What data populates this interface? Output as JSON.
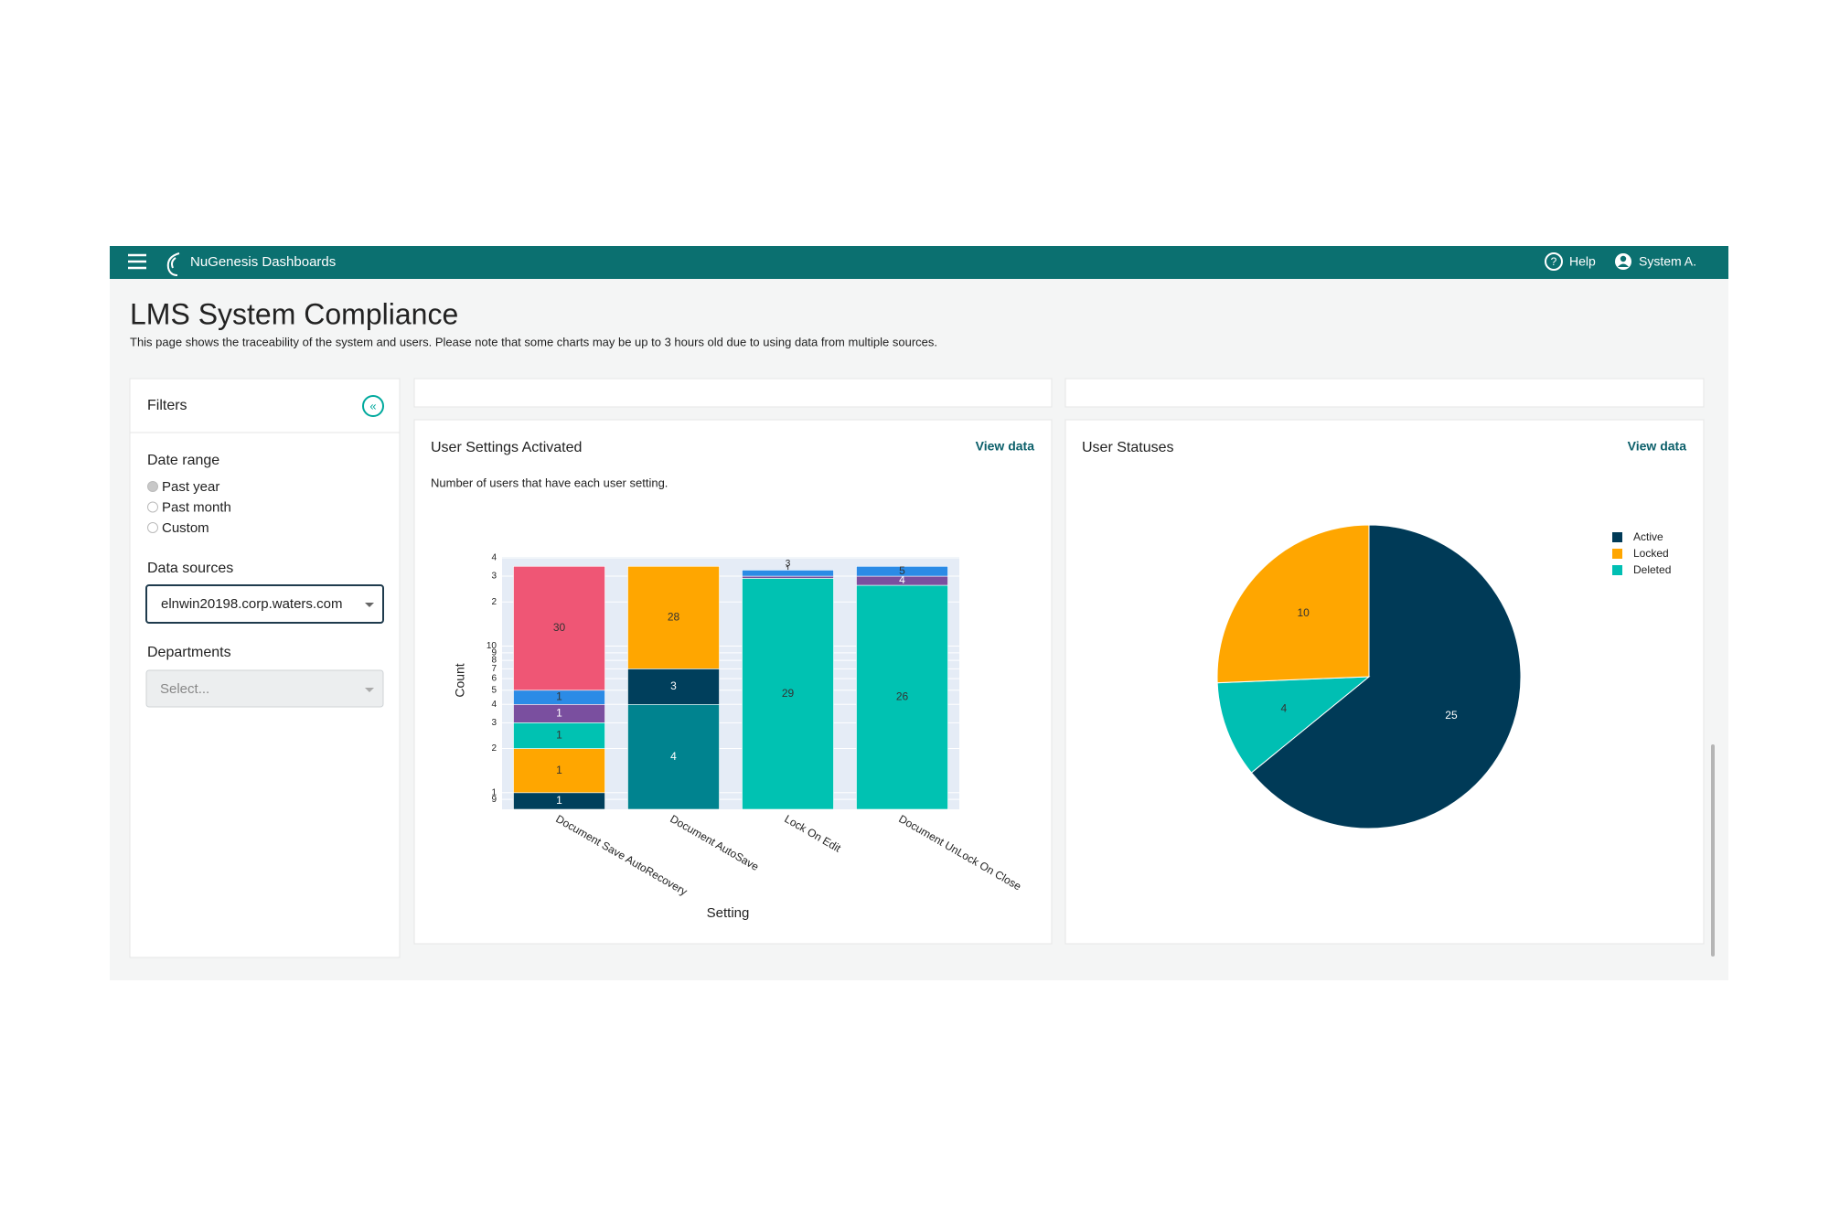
{
  "header": {
    "brand": "NuGenesis Dashboards",
    "help": "Help",
    "user": "System A."
  },
  "page": {
    "title": "LMS System Compliance",
    "subtitle": "This page shows the traceability of the system and users. Please note that some charts may be up to 3 hours old due to using data from multiple sources."
  },
  "filters": {
    "title": "Filters",
    "date_range": {
      "label": "Date range",
      "options": [
        "Past year",
        "Past month",
        "Custom"
      ],
      "selected": 0
    },
    "data_sources": {
      "label": "Data sources",
      "value": "elnwin20198.corp.waters.com"
    },
    "departments": {
      "label": "Departments",
      "placeholder": "Select..."
    }
  },
  "chart_data": [
    {
      "type": "bar",
      "stacked": true,
      "title": "User Settings Activated",
      "link": "View data",
      "subtitle": "Number of users that have each user setting.",
      "xlabel": "Setting",
      "ylabel": "Count",
      "log_y": true,
      "grid": true,
      "categories": [
        "Document Save AutoRecovery",
        "Document AutoSave",
        "Lock On Edit",
        "Document UnLock On Close"
      ],
      "series": [
        {
          "color": "#00838f",
          "values": [
            null,
            4,
            null,
            null
          ]
        },
        {
          "color": "#003f5c",
          "values": [
            1,
            3,
            null,
            null
          ]
        },
        {
          "color": "#ffa600",
          "values": [
            1,
            28,
            null,
            null
          ]
        },
        {
          "color": "#00c2b2",
          "values": [
            1,
            null,
            29,
            26
          ]
        },
        {
          "color": "#7a4f9f",
          "values": [
            1,
            null,
            1,
            4
          ]
        },
        {
          "color": "#2b8be6",
          "values": [
            1,
            null,
            3,
            5
          ]
        },
        {
          "color": "#ef5675",
          "values": [
            30,
            null,
            null,
            null
          ]
        }
      ],
      "ylim": [
        0.77,
        40.6
      ],
      "yticks": [
        {
          "value": 0.9,
          "label": "9"
        },
        1,
        2,
        3,
        4,
        5,
        6,
        7,
        8,
        9,
        10,
        {
          "value": 20,
          "label": "2"
        },
        {
          "value": 30,
          "label": "3"
        },
        {
          "value": 40,
          "label": "4"
        }
      ]
    },
    {
      "type": "pie",
      "title": "User Statuses",
      "link": "View data",
      "categories": [
        "Active",
        "Locked",
        "Deleted"
      ],
      "values": [
        25,
        10,
        4
      ],
      "colors": [
        "#003a57",
        "#ffa600",
        "#00bfb3"
      ],
      "legend": "top-right"
    }
  ]
}
